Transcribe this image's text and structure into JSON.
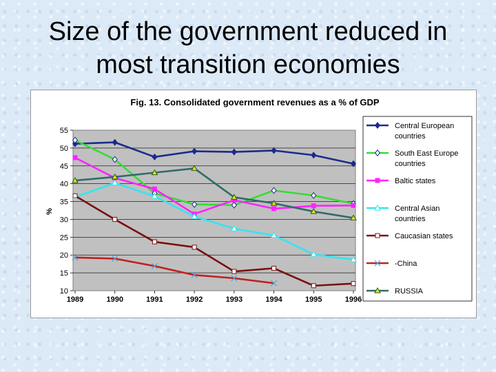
{
  "slide": {
    "title_line1": "Size of the government reduced in",
    "title_line2": "most transition economies"
  },
  "chart_data": {
    "type": "line",
    "title": "Fig. 13. Consolidated government revenues as a % of GDP",
    "xlabel": "",
    "ylabel": "%",
    "x": [
      "1989",
      "1990",
      "1991",
      "1992",
      "1993",
      "1994",
      "1995",
      "1996"
    ],
    "ylim": [
      10,
      55
    ],
    "yticks": [
      10,
      15,
      20,
      25,
      30,
      35,
      40,
      45,
      50,
      55
    ],
    "grid": true,
    "legend_position": "right",
    "series": [
      {
        "name": "Central European countries",
        "color": "#1a2b8c",
        "marker": "diamond-filled",
        "values": [
          51.2,
          51.6,
          47.5,
          49.1,
          48.9,
          49.3,
          48.0,
          45.6
        ]
      },
      {
        "name": "South East Europe countries",
        "color": "#33dd33",
        "marker": "diamond-open",
        "values": [
          52.2,
          46.8,
          37.3,
          34.2,
          34.0,
          38.1,
          36.7,
          34.4
        ]
      },
      {
        "name": "Baltic states",
        "color": "#ff22ff",
        "marker": "square-filled",
        "values": [
          47.3,
          41.6,
          38.5,
          31.5,
          35.4,
          33.0,
          33.8,
          33.9
        ]
      },
      {
        "name": "Central Asian countries",
        "color": "#33e5f0",
        "marker": "triangle-open",
        "values": [
          36.2,
          40.2,
          36.5,
          30.8,
          27.4,
          25.5,
          20.2,
          18.7
        ]
      },
      {
        "name": "Caucasian states",
        "color": "#7a1010",
        "marker": "square-open",
        "values": [
          36.6,
          30.0,
          23.7,
          22.2,
          15.4,
          16.3,
          11.4,
          12.0
        ]
      },
      {
        "name": "-China",
        "color": "#c2201e",
        "marker": "x",
        "values": [
          19.3,
          19.0,
          16.9,
          14.4,
          13.5,
          12.1,
          null,
          null
        ]
      },
      {
        "name": "RUSSIA",
        "color": "#2f6b6b",
        "marker": "triangle-filled",
        "values": [
          40.9,
          41.9,
          43.1,
          44.3,
          36.2,
          34.5,
          32.2,
          30.4
        ]
      }
    ]
  }
}
